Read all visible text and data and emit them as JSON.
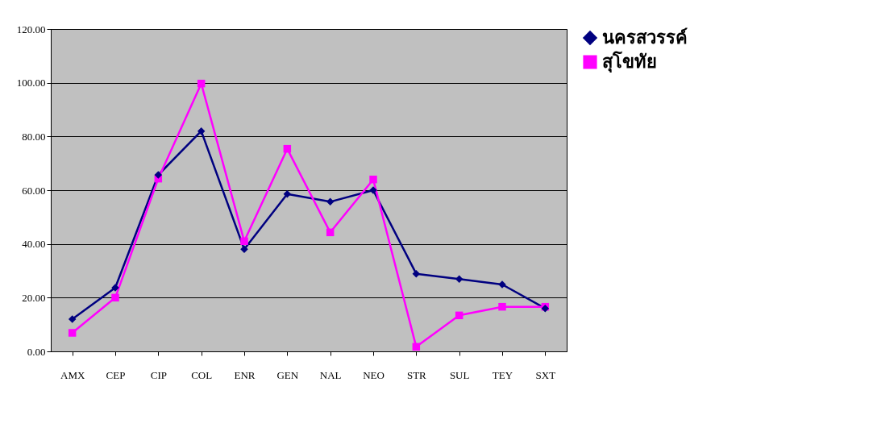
{
  "chart_data": {
    "type": "line",
    "categories": [
      "AMX",
      "CEP",
      "CIP",
      "COL",
      "ENR",
      "GEN",
      "NAL",
      "NEO",
      "STR",
      "SUL",
      "TEY",
      "SXT"
    ],
    "series": [
      {
        "name": "นครสวรรค์",
        "color": "#000080",
        "marker": "diamond",
        "values": [
          12.0,
          23.7,
          65.7,
          82.0,
          38.0,
          58.6,
          55.7,
          60.0,
          28.9,
          26.9,
          24.9,
          16.0
        ]
      },
      {
        "name": "สุโขทัย",
        "color": "#ff00ff",
        "marker": "square",
        "values": [
          6.9,
          20.0,
          64.3,
          99.7,
          41.0,
          75.4,
          44.3,
          64.0,
          1.7,
          13.4,
          16.6,
          16.6
        ]
      }
    ],
    "ylim": [
      0,
      120
    ],
    "yticks": [
      {
        "value": 0,
        "label": "0.00"
      },
      {
        "value": 20,
        "label": "20.00"
      },
      {
        "value": 40,
        "label": "40.00"
      },
      {
        "value": 60,
        "label": "60.00"
      },
      {
        "value": 80,
        "label": "80.00"
      },
      {
        "value": 100,
        "label": "100.00"
      },
      {
        "value": 120,
        "label": "120.00"
      }
    ],
    "grid": "y",
    "legend": "right",
    "line_style": "solid"
  }
}
